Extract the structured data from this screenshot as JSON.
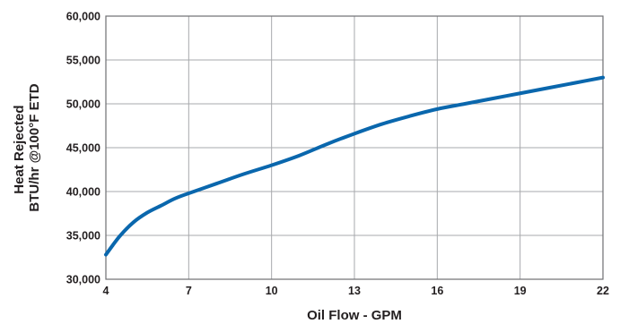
{
  "chart_data": {
    "type": "line",
    "title": "",
    "xlabel": "Oil Flow - GPM",
    "ylabel_lines": [
      "Heat Rejected",
      "BTU/hr @100°F ETD"
    ],
    "xlim": [
      4,
      22
    ],
    "ylim": [
      30000,
      60000
    ],
    "x_ticks": [
      4,
      7,
      10,
      13,
      16,
      19,
      22
    ],
    "x_tick_labels": [
      "4",
      "7",
      "10",
      "13",
      "16",
      "19",
      "22"
    ],
    "y_ticks": [
      30000,
      35000,
      40000,
      45000,
      50000,
      55000,
      60000
    ],
    "y_tick_labels": [
      "30,000",
      "35,000",
      "40,000",
      "45,000",
      "50,000",
      "55,000",
      "60,000"
    ],
    "grid": true,
    "legend": "none",
    "line_color": "#0a67ad",
    "grid_color": "#a7a9ac",
    "frame_color": "#6d6e71",
    "series": [
      {
        "x": [
          4,
          4.5,
          5,
          5.5,
          6,
          6.5,
          7,
          8,
          9,
          10,
          11,
          12,
          13,
          14,
          15,
          16,
          17,
          18,
          19,
          20,
          21,
          22
        ],
        "y": [
          32800,
          34900,
          36500,
          37600,
          38400,
          39200,
          39800,
          40900,
          42000,
          43000,
          44100,
          45400,
          46600,
          47700,
          48600,
          49400,
          50000,
          50600,
          51200,
          51800,
          52400,
          53000
        ]
      }
    ]
  }
}
